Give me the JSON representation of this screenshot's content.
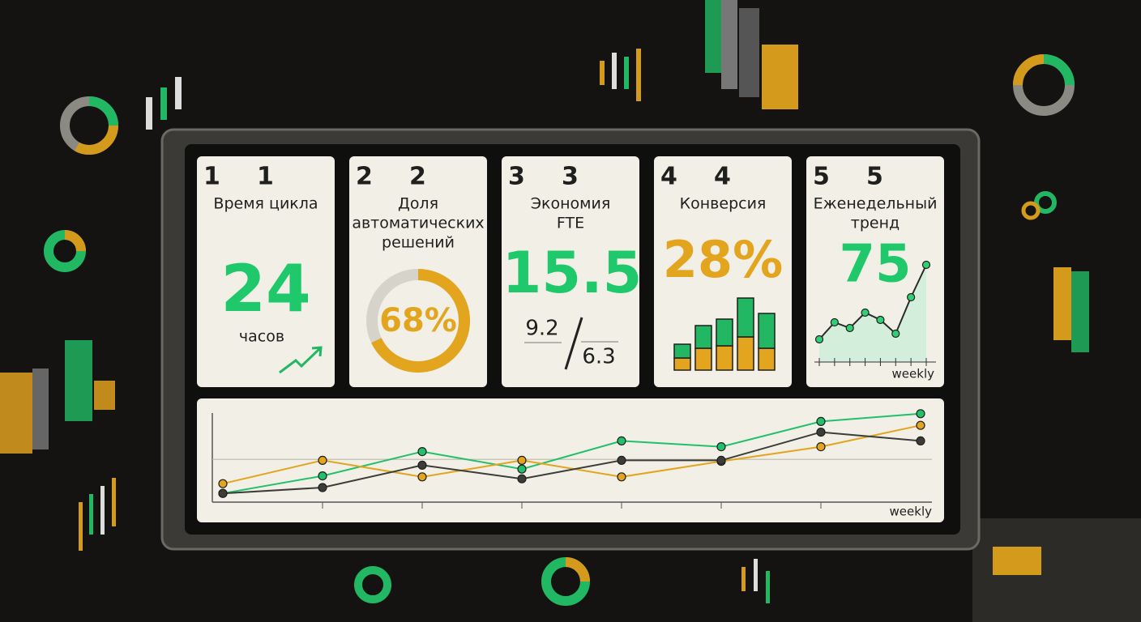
{
  "cards": [
    {
      "index": "1",
      "number": "1",
      "title": [
        "Время цикла"
      ],
      "value": "24",
      "unit": "часов"
    },
    {
      "index": "2",
      "number": "2",
      "title": [
        "Доля",
        "автоматических",
        "решений"
      ],
      "donut": {
        "value": 68,
        "label": "68%"
      },
      "donut_max": 100,
      "color": "#e3a41e"
    },
    {
      "index": "3",
      "number": "3",
      "title": [
        "Экономия",
        "FTE"
      ],
      "value": "15.5",
      "fraction": [
        "9.2",
        "6.3"
      ]
    },
    {
      "index": "4",
      "number": "4",
      "title": [
        "Конверсия"
      ],
      "value": "28%",
      "bars": {
        "ylim": [
          0,
          100
        ],
        "series": [
          {
            "color": "#e3a41e",
            "values": [
              15,
              27,
              30,
              41,
              27
            ]
          },
          {
            "color": "#22b863",
            "values": [
              17,
              28,
              33,
              48,
              43
            ]
          }
        ]
      }
    },
    {
      "index": "5",
      "number": "5",
      "title": [
        "Еженедельный",
        "тренд"
      ],
      "value": "75",
      "sparkline": {
        "ylim": [
          0,
          120
        ],
        "values": [
          21,
          42,
          35,
          54,
          45,
          28,
          73,
          113
        ],
        "color": "#2a2a28",
        "x_label": "weekly"
      }
    }
  ],
  "trend_chart": {
    "type": "line",
    "x_label": "weekly",
    "ylim": [
      0,
      100
    ],
    "reference_line": 44,
    "series": [
      {
        "color": "#22c06a",
        "values": [
          9,
          27,
          52,
          34,
          63,
          57,
          83,
          91
        ]
      },
      {
        "color": "#e3a41e",
        "values": [
          19,
          43,
          26,
          43,
          26,
          42,
          57,
          79
        ]
      },
      {
        "color": "#3c3c38",
        "values": [
          9,
          15,
          38,
          24,
          43,
          43,
          72,
          63
        ]
      }
    ]
  }
}
